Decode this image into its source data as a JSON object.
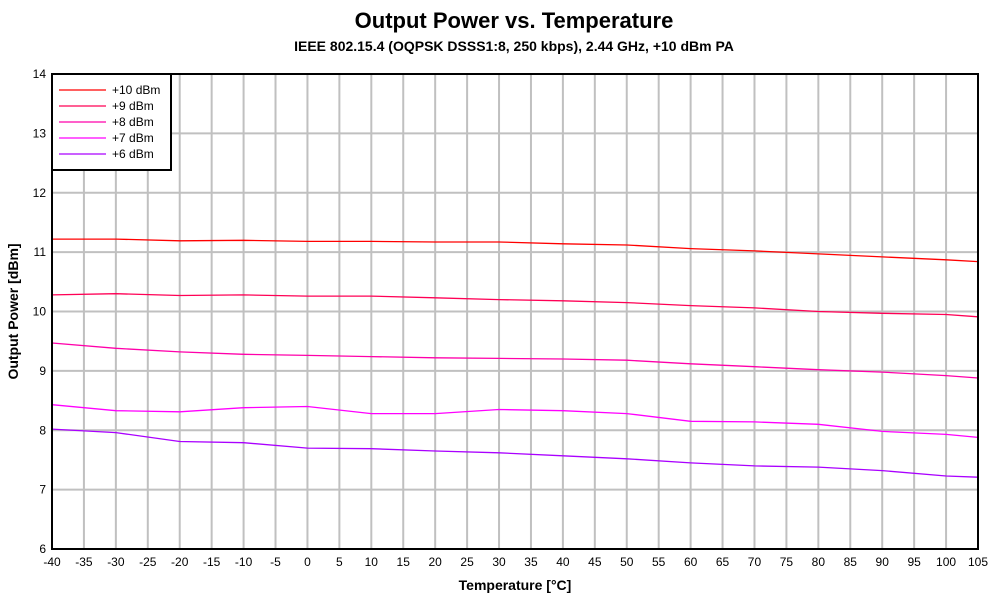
{
  "chart_data": {
    "type": "line",
    "title": "Output Power vs. Temperature",
    "subtitle": "IEEE 802.15.4 (OQPSK DSSS1:8, 250 kbps), 2.44 GHz, +10 dBm PA",
    "xlabel": "Temperature [°C]",
    "ylabel": "Output Power [dBm]",
    "xlim": [
      -40,
      105
    ],
    "ylim": [
      6,
      14
    ],
    "xticks": [
      -40,
      -35,
      -30,
      -25,
      -20,
      -15,
      -10,
      -5,
      0,
      5,
      10,
      15,
      20,
      25,
      30,
      35,
      40,
      45,
      50,
      55,
      60,
      65,
      70,
      75,
      80,
      85,
      90,
      95,
      100,
      105
    ],
    "yticks": [
      6,
      7,
      8,
      9,
      10,
      11,
      12,
      13,
      14
    ],
    "grid": true,
    "legend": "top-left",
    "x": [
      -40,
      -30,
      -20,
      -10,
      0,
      10,
      20,
      30,
      40,
      50,
      60,
      70,
      80,
      90,
      100,
      105
    ],
    "series": [
      {
        "name": "+10 dBm",
        "color": "#ff0000",
        "values": [
          11.22,
          11.22,
          11.19,
          11.2,
          11.18,
          11.18,
          11.17,
          11.17,
          11.14,
          11.12,
          11.06,
          11.02,
          10.97,
          10.92,
          10.87,
          10.84
        ]
      },
      {
        "name": "+9 dBm",
        "color": "#ff0055",
        "values": [
          10.28,
          10.3,
          10.27,
          10.28,
          10.26,
          10.26,
          10.23,
          10.2,
          10.18,
          10.15,
          10.1,
          10.06,
          10.0,
          9.97,
          9.95,
          9.91
        ]
      },
      {
        "name": "+8 dBm",
        "color": "#ff00aa",
        "values": [
          9.47,
          9.38,
          9.32,
          9.28,
          9.26,
          9.24,
          9.22,
          9.21,
          9.2,
          9.18,
          9.12,
          9.07,
          9.02,
          8.98,
          8.92,
          8.88
        ]
      },
      {
        "name": "+7 dBm",
        "color": "#ff00ff",
        "values": [
          8.43,
          8.33,
          8.31,
          8.38,
          8.4,
          8.28,
          8.28,
          8.35,
          8.33,
          8.28,
          8.15,
          8.14,
          8.1,
          7.98,
          7.93,
          7.88
        ]
      },
      {
        "name": "+6 dBm",
        "color": "#aa00ff",
        "values": [
          8.02,
          7.96,
          7.81,
          7.79,
          7.7,
          7.69,
          7.65,
          7.62,
          7.57,
          7.52,
          7.45,
          7.4,
          7.38,
          7.32,
          7.23,
          7.21
        ]
      }
    ]
  }
}
